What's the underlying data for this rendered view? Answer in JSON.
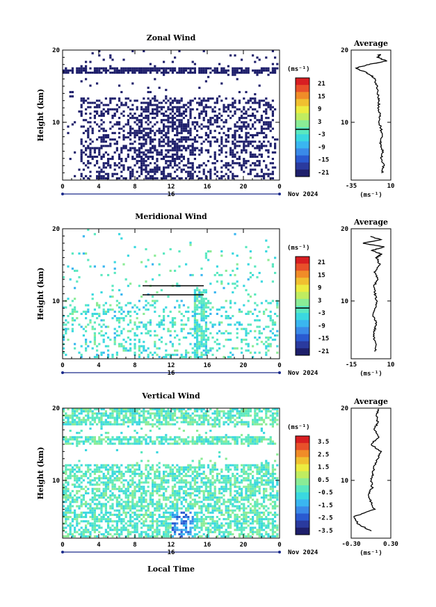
{
  "figure": {
    "xlabel": "Local Time",
    "date_label": "Nov 2024",
    "day_label": "16",
    "colors": [
      "#1e1f6b",
      "#2a3a9e",
      "#2a5ad0",
      "#3a8ae8",
      "#3ab6f0",
      "#3ad8e0",
      "#5ae8c0",
      "#8aec96",
      "#c0ec60",
      "#ecec40",
      "#f0c030",
      "#f08c28",
      "#e8502a",
      "#d81e22"
    ]
  },
  "chart_data": [
    {
      "type": "heatmap",
      "title": "Zonal Wind",
      "ylabel": "Height (km)",
      "xticks": [
        "0",
        "4",
        "8",
        "12",
        "16",
        "20",
        "0"
      ],
      "yticks": [
        "20",
        "10"
      ],
      "ylim": [
        2,
        20
      ],
      "xlim": [
        0,
        24
      ],
      "colorbar": {
        "unit": "(ms⁻¹)",
        "ticks": [
          "21",
          "15",
          "9",
          "3",
          "-3",
          "-9",
          "-15",
          "-21"
        ],
        "range": [
          -24,
          24
        ],
        "contour": 0
      },
      "profile": {
        "title": "Average",
        "unit": "(ms⁻¹)",
        "xticks": [
          "-35",
          "10"
        ],
        "xlim": [
          -35,
          10
        ],
        "yticks": [
          "20",
          "10"
        ],
        "heights": [
          3,
          4,
          5,
          6,
          7,
          8,
          9,
          10,
          11,
          12,
          13,
          14,
          15,
          16,
          16.5,
          17,
          17.5,
          18,
          18.5,
          19,
          19.5
        ],
        "values": [
          0,
          2,
          -1,
          1,
          -2,
          0,
          -1,
          -3,
          -2,
          -4,
          -3,
          -5,
          -6,
          -8,
          -12,
          -20,
          -30,
          -15,
          5,
          -5,
          -2
        ]
      },
      "seed": 11,
      "bias": -6
    },
    {
      "type": "heatmap",
      "title": "Meridional Wind",
      "ylabel": "Height (km)",
      "xticks": [
        "0",
        "4",
        "8",
        "12",
        "16",
        "20",
        "0"
      ],
      "yticks": [
        "20",
        "10"
      ],
      "ylim": [
        2,
        20
      ],
      "xlim": [
        0,
        24
      ],
      "colorbar": {
        "unit": "(ms⁻¹)",
        "ticks": [
          "21",
          "15",
          "9",
          "3",
          "-3",
          "-9",
          "-15",
          "-21"
        ],
        "range": [
          -24,
          24
        ],
        "contour": 0
      },
      "profile": {
        "title": "Average",
        "unit": "(ms⁻¹)",
        "xticks": [
          "-15",
          "10"
        ],
        "xlim": [
          -15,
          10
        ],
        "yticks": [
          "20",
          "10"
        ],
        "heights": [
          3,
          4,
          5,
          6,
          7,
          8,
          9,
          10,
          11,
          12,
          13,
          14,
          15,
          16,
          16.5,
          17,
          17.5,
          18,
          18.5,
          19
        ],
        "values": [
          0,
          1,
          -1,
          0,
          1,
          -1,
          0,
          1,
          0,
          -1,
          2,
          0,
          3,
          1,
          4,
          -2,
          6,
          -8,
          4,
          -4
        ]
      },
      "seed": 29,
      "bias": 0
    },
    {
      "type": "heatmap",
      "title": "Vertical Wind",
      "ylabel": "Height (km)",
      "xticks": [
        "0",
        "4",
        "8",
        "12",
        "16",
        "20",
        "0"
      ],
      "yticks": [
        "20",
        "10"
      ],
      "ylim": [
        2,
        20
      ],
      "xlim": [
        0,
        24
      ],
      "colorbar": {
        "unit": "(ms⁻¹)",
        "ticks": [
          "3.5",
          "2.5",
          "1.5",
          "0.5",
          "-0.5",
          "-1.5",
          "-2.5",
          "-3.5"
        ],
        "range": [
          -4,
          4
        ],
        "contour": null
      },
      "profile": {
        "title": "Average",
        "unit": "(ms⁻¹)",
        "xticks": [
          "-0.30",
          "0.30"
        ],
        "xlim": [
          -0.3,
          0.3
        ],
        "yticks": [
          "20",
          "10"
        ],
        "heights": [
          3,
          4,
          5,
          6,
          7,
          8,
          9,
          10,
          11,
          12,
          13,
          14,
          15,
          16,
          17,
          18,
          19,
          20
        ],
        "values": [
          0,
          -0.2,
          -0.25,
          0.05,
          0,
          -0.05,
          0.02,
          0,
          0.03,
          0.05,
          0.1,
          0.15,
          0.0,
          0.12,
          0.05,
          0.1,
          0.08,
          0.12
        ]
      },
      "seed": 47,
      "bias": 0.4
    }
  ]
}
